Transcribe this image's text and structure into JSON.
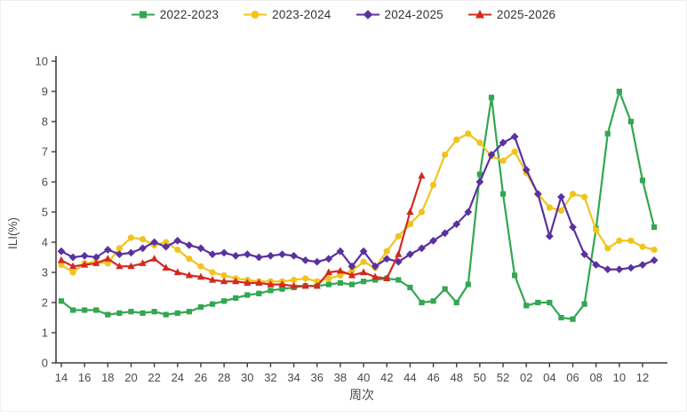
{
  "page": {
    "background": "#ffffff"
  },
  "chart_data": {
    "type": "line",
    "title": "",
    "xlabel": "周次",
    "ylabel": "ILI(%)",
    "ylim": [
      0,
      10
    ],
    "y_ticks": [
      0,
      1,
      2,
      3,
      4,
      5,
      6,
      7,
      8,
      9,
      10
    ],
    "grid": false,
    "legend_position": "top",
    "categories": [
      "14",
      "15",
      "16",
      "17",
      "18",
      "19",
      "20",
      "21",
      "22",
      "23",
      "24",
      "25",
      "26",
      "27",
      "28",
      "29",
      "30",
      "31",
      "32",
      "33",
      "34",
      "35",
      "36",
      "37",
      "38",
      "39",
      "40",
      "41",
      "42",
      "43",
      "44",
      "45",
      "46",
      "47",
      "48",
      "49",
      "50",
      "51",
      "52",
      "01",
      "02",
      "03",
      "04",
      "05",
      "06",
      "07",
      "08",
      "09",
      "10",
      "11",
      "12",
      "13"
    ],
    "x_tick_labels": [
      "14",
      "16",
      "18",
      "20",
      "22",
      "24",
      "26",
      "28",
      "30",
      "32",
      "34",
      "36",
      "38",
      "40",
      "42",
      "44",
      "46",
      "48",
      "50",
      "52",
      "02",
      "04",
      "06",
      "08",
      "10",
      "12"
    ],
    "series": [
      {
        "name": "2022-2023",
        "color": "#33A651",
        "marker": "square",
        "values": [
          2.05,
          1.75,
          1.75,
          1.75,
          1.6,
          1.65,
          1.7,
          1.65,
          1.7,
          1.6,
          1.65,
          1.7,
          1.85,
          1.95,
          2.05,
          2.15,
          2.25,
          2.3,
          2.4,
          2.45,
          2.5,
          2.55,
          2.55,
          2.6,
          2.65,
          2.6,
          2.7,
          2.75,
          2.8,
          2.75,
          2.5,
          2.0,
          2.05,
          2.45,
          2.0,
          2.6,
          6.25,
          8.8,
          5.6,
          2.9,
          1.9,
          2.0,
          2.0,
          1.5,
          1.45,
          1.95,
          4.45,
          7.6,
          9.0,
          8.0,
          6.05,
          4.5
        ]
      },
      {
        "name": "2023-2024",
        "color": "#F0C41E",
        "marker": "circle",
        "values": [
          3.25,
          3.0,
          3.3,
          3.35,
          3.3,
          3.8,
          4.15,
          4.1,
          3.9,
          4.0,
          3.75,
          3.45,
          3.2,
          3.0,
          2.9,
          2.8,
          2.75,
          2.7,
          2.7,
          2.7,
          2.75,
          2.8,
          2.7,
          2.8,
          2.9,
          3.05,
          3.35,
          3.15,
          3.7,
          4.2,
          4.6,
          5.0,
          5.9,
          6.9,
          7.4,
          7.6,
          7.3,
          6.85,
          6.7,
          7.0,
          6.3,
          5.6,
          5.15,
          5.05,
          5.6,
          5.5,
          4.4,
          3.8,
          4.05,
          4.05,
          3.85,
          3.75
        ]
      },
      {
        "name": "2024-2025",
        "color": "#5A31A0",
        "marker": "diamond",
        "values": [
          3.7,
          3.5,
          3.55,
          3.5,
          3.75,
          3.6,
          3.65,
          3.8,
          4.0,
          3.85,
          4.05,
          3.9,
          3.8,
          3.6,
          3.65,
          3.55,
          3.6,
          3.5,
          3.55,
          3.6,
          3.55,
          3.4,
          3.35,
          3.45,
          3.7,
          3.2,
          3.7,
          3.2,
          3.45,
          3.35,
          3.6,
          3.8,
          4.05,
          4.3,
          4.6,
          5.0,
          6.0,
          6.9,
          7.3,
          7.5,
          6.4,
          5.6,
          4.2,
          5.5,
          4.5,
          3.6,
          3.25,
          3.1,
          3.1,
          3.15,
          3.25,
          3.4
        ]
      },
      {
        "name": "2025-2026",
        "color": "#D4291E",
        "marker": "triangle",
        "values": [
          3.4,
          3.2,
          3.25,
          3.3,
          3.45,
          3.2,
          3.2,
          3.3,
          3.45,
          3.15,
          3.0,
          2.9,
          2.85,
          2.75,
          2.7,
          2.7,
          2.65,
          2.65,
          2.6,
          2.6,
          2.55,
          2.55,
          2.55,
          3.0,
          3.05,
          2.9,
          3.0,
          2.85,
          2.8,
          3.6,
          5.0,
          6.2,
          null,
          null,
          null,
          null,
          null,
          null,
          null,
          null,
          null,
          null,
          null,
          null,
          null,
          null,
          null,
          null,
          null,
          null,
          null,
          null
        ]
      }
    ]
  }
}
